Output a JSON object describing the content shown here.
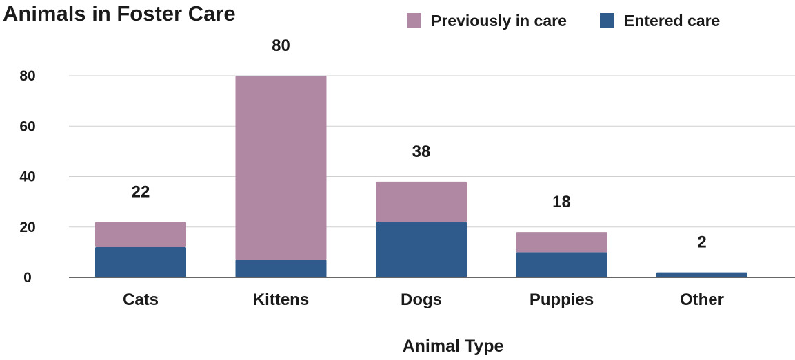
{
  "chart_data": {
    "type": "bar",
    "stacked": true,
    "title": "Animals in Foster Care",
    "xlabel": "Animal Type",
    "ylabel": "",
    "categories": [
      "Cats",
      "Kittens",
      "Dogs",
      "Puppies",
      "Other"
    ],
    "series": [
      {
        "name": "Entered care",
        "values": [
          12,
          7,
          22,
          10,
          2
        ],
        "color": "#2e5b8c"
      },
      {
        "name": "Previously in care",
        "values": [
          10,
          73,
          16,
          8,
          0
        ],
        "color": "#b088a4"
      }
    ],
    "totals": [
      "22",
      "80",
      "38",
      "18",
      "2"
    ],
    "ylim": [
      0,
      80
    ],
    "yticks": [
      "0",
      "20",
      "40",
      "60",
      "80"
    ],
    "grid": true,
    "legend_position": "top-right",
    "legend_order": [
      "Previously in care",
      "Entered care"
    ]
  }
}
